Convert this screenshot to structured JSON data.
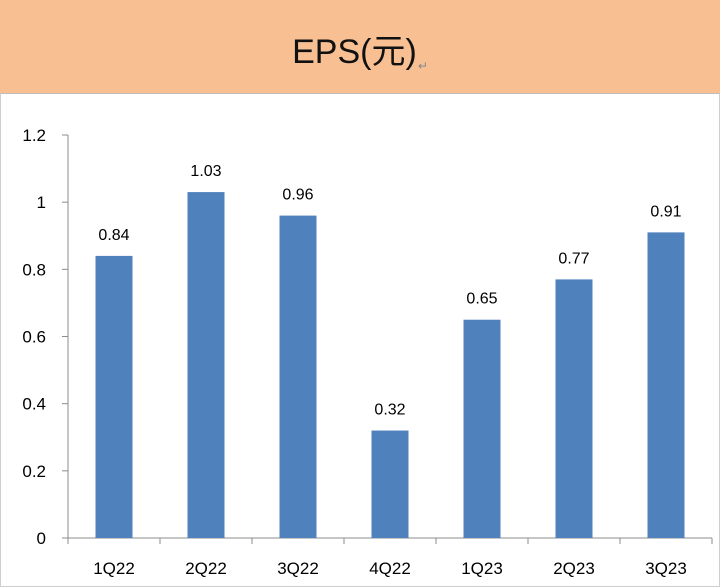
{
  "header": {
    "title": "EPS(元)",
    "return_mark": "↵"
  },
  "chart_data": {
    "type": "bar",
    "title": "EPS(元)",
    "categories": [
      "1Q22",
      "2Q22",
      "3Q22",
      "4Q22",
      "1Q23",
      "2Q23",
      "3Q23"
    ],
    "values": [
      0.84,
      1.03,
      0.96,
      0.32,
      0.65,
      0.77,
      0.91
    ],
    "data_labels": [
      "0.84",
      "1.03",
      "0.96",
      "0.32",
      "0.65",
      "0.77",
      "0.91"
    ],
    "yticks": [
      "0",
      "0.2",
      "0.4",
      "0.6",
      "0.8",
      "1",
      "1.2"
    ],
    "ylim": [
      0,
      1.2
    ],
    "xlabel": "",
    "ylabel": "",
    "grid": false,
    "legend": "none",
    "bar_color": "#4f81bd"
  }
}
